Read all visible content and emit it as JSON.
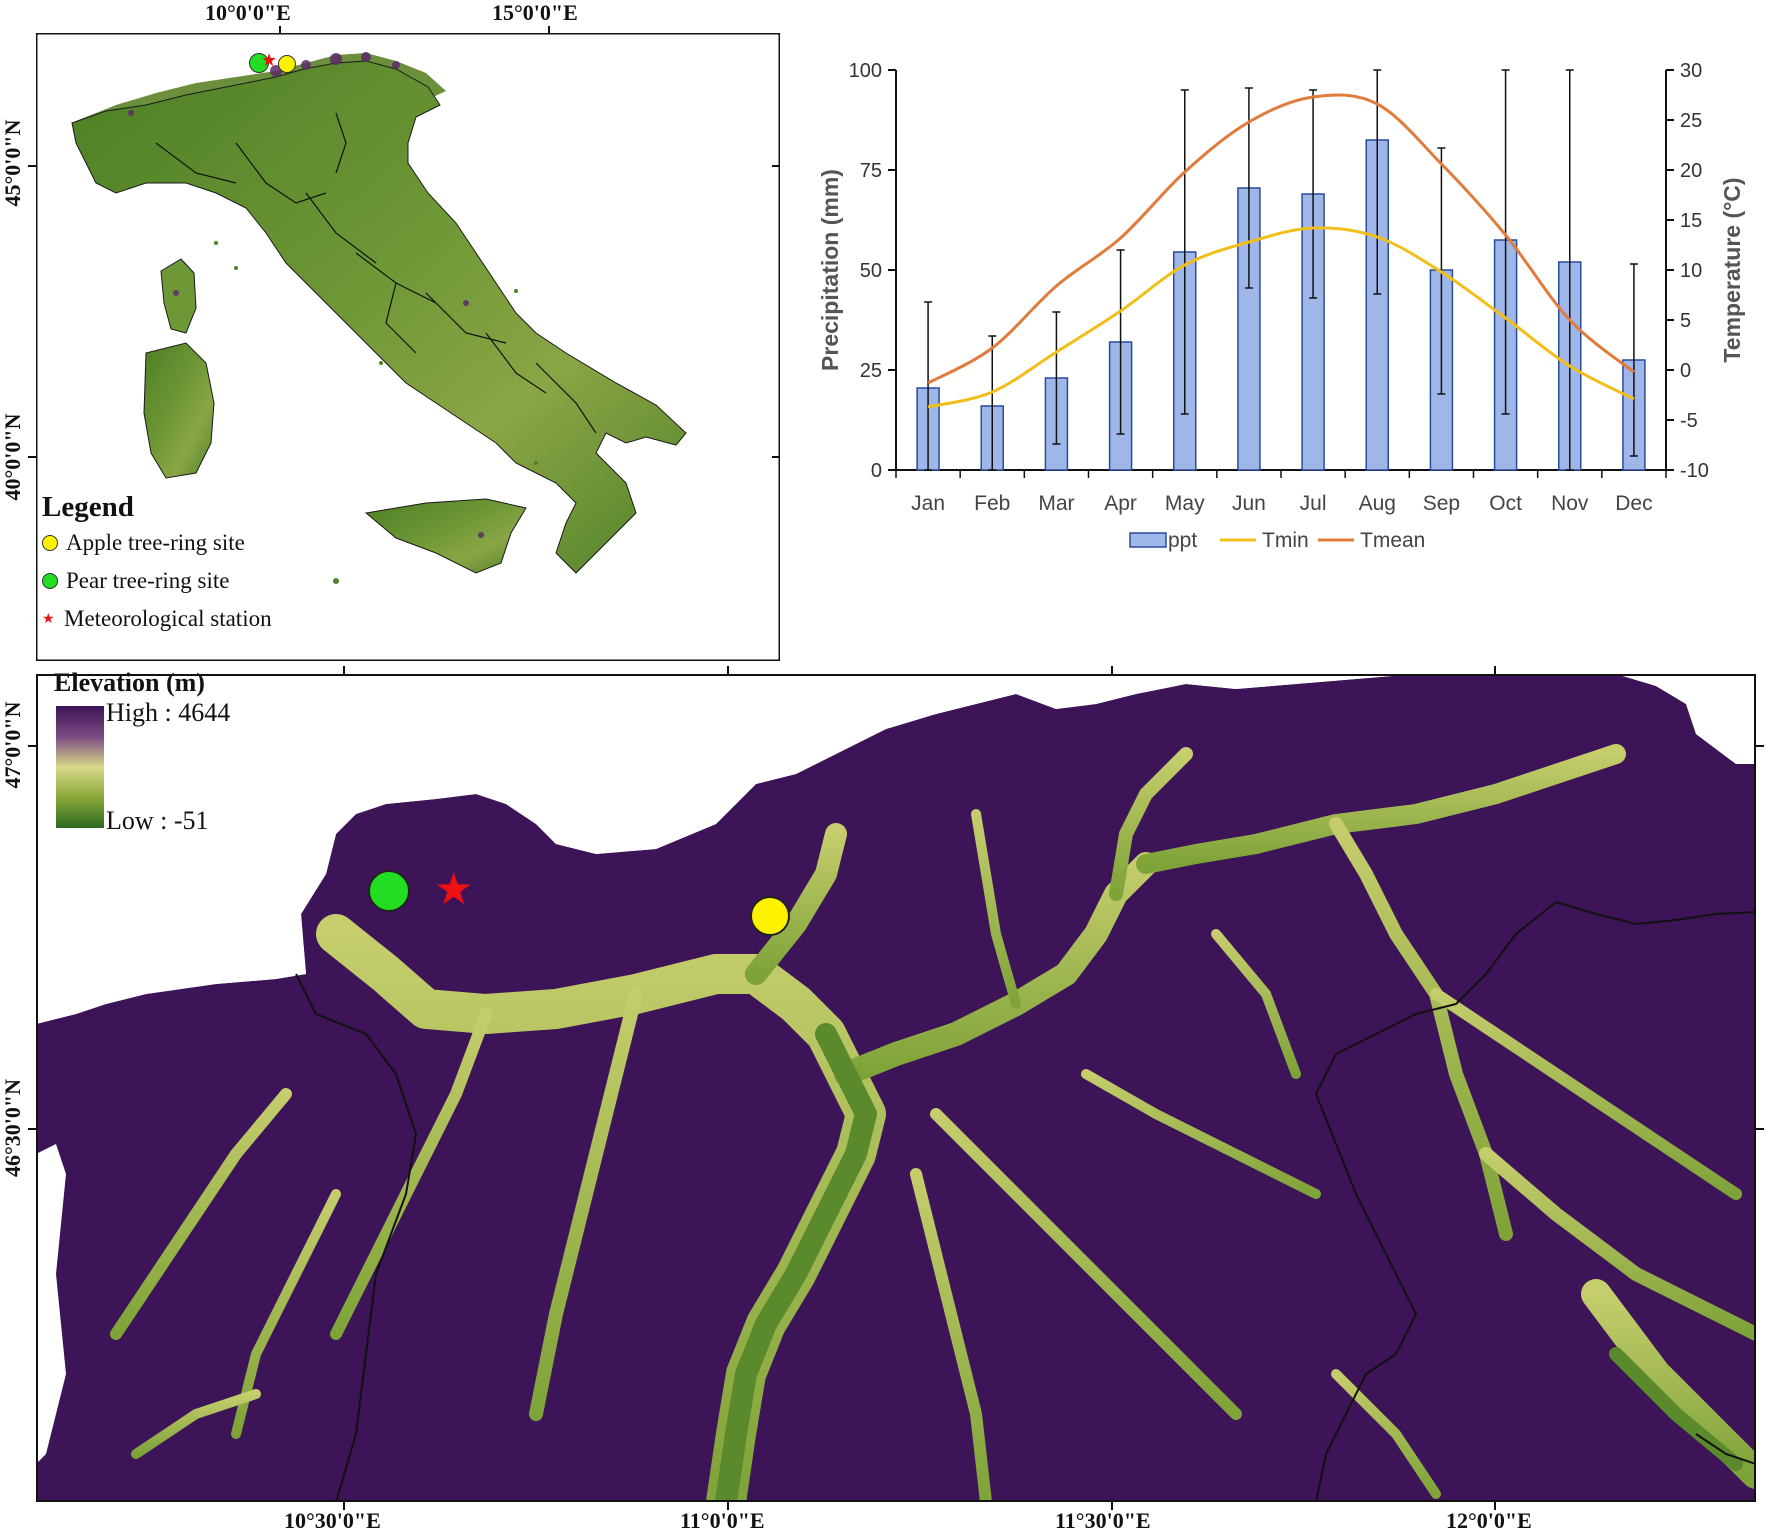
{
  "inset_map": {
    "x_ticks": [
      "10°0'0\"E",
      "15°0'0\"E"
    ],
    "y_ticks": [
      "45°0'0\"N",
      "40°0'0\"N"
    ],
    "legend": {
      "title": "Legend",
      "items": [
        {
          "label": "Apple tree-ring site",
          "color": "#fff200",
          "symbol": "circle"
        },
        {
          "label": "Pear tree-ring site",
          "color": "#22dd22",
          "symbol": "circle"
        },
        {
          "label": "Meteorological station",
          "color": "#ee1111",
          "symbol": "star"
        }
      ]
    },
    "colors": {
      "lowland": "#2f6e1e",
      "midland": "#6f9a35",
      "upland": "#c9d27a",
      "mountain": "#5a2a6a",
      "sea": "#ffffff"
    }
  },
  "main_map": {
    "x_ticks": [
      "10°30'0\"E",
      "11°0'0\"E",
      "11°30'0\"E",
      "12°0'0\"E"
    ],
    "y_ticks": [
      "47°0'0\"N",
      "46°30'0\"N"
    ],
    "elevation_legend": {
      "title": "Elevation (m)",
      "high_label": "High : 4644",
      "low_label": "Low : -51",
      "gradient": [
        "#3d1457",
        "#7a4a82",
        "#d8d88a",
        "#8aa83a",
        "#2c6a20"
      ]
    },
    "markers": [
      {
        "name": "pear-site",
        "color": "#22dd22",
        "symbol": "circle"
      },
      {
        "name": "met-station",
        "color": "#ee1111",
        "symbol": "star"
      },
      {
        "name": "apple-site",
        "color": "#fff200",
        "symbol": "circle"
      }
    ],
    "colors": {
      "mountain": "#3d1457",
      "valley": "#b7c45c",
      "lowvalley": "#5a8a2c",
      "border": "#111111"
    }
  },
  "chart_data": {
    "type": "bar",
    "categories": [
      "Jan",
      "Feb",
      "Mar",
      "Apr",
      "May",
      "Jun",
      "Jul",
      "Aug",
      "Sep",
      "Oct",
      "Nov",
      "Dec"
    ],
    "series": [
      {
        "name": "ppt",
        "type": "bar",
        "axis": "left",
        "color": "#9fb6e8",
        "values": [
          20.5,
          16,
          23,
          32,
          54.5,
          70.5,
          69,
          82.5,
          50,
          57.5,
          52,
          27.5
        ],
        "error_high": [
          42,
          33.5,
          39.5,
          55,
          95,
          95.5,
          95,
          100,
          80.5,
          100,
          100,
          51.5
        ],
        "error_low": [
          0,
          0,
          6.5,
          9,
          14,
          45.5,
          43,
          44,
          19,
          14,
          0,
          3.5
        ]
      },
      {
        "name": "Tmin",
        "type": "line",
        "axis": "right",
        "color": "#f2bf1a",
        "values": [
          -3.7,
          -2.2,
          1.8,
          5.9,
          10.5,
          12.8,
          14.2,
          13.3,
          9.8,
          5.2,
          0.4,
          -2.9
        ]
      },
      {
        "name": "Tmean",
        "type": "line",
        "axis": "right",
        "color": "#e07b3c",
        "values": [
          -1.3,
          2.2,
          8.4,
          13.2,
          19.8,
          24.8,
          27.3,
          26.6,
          20.6,
          13.5,
          5.0,
          -0.2
        ]
      }
    ],
    "ylabel": "Precipitation (mm)",
    "y2label": "Temperature (°C)",
    "ylim": [
      0,
      100
    ],
    "y2lim": [
      -10,
      30
    ],
    "yticks": [
      0,
      25,
      50,
      75,
      100
    ],
    "y2ticks": [
      -10,
      -5,
      0,
      5,
      10,
      15,
      20,
      25,
      30
    ],
    "grid": false,
    "legend_position": "bottom"
  }
}
